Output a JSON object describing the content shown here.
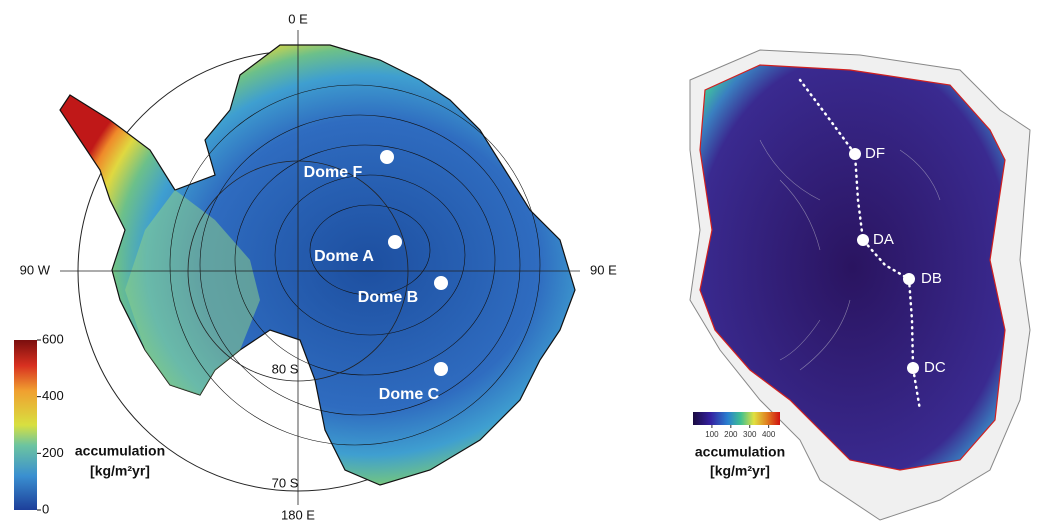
{
  "left_map": {
    "meridian_labels": {
      "top": "0 E",
      "bottom": "180 E",
      "left": "90 W",
      "right": "90 E"
    },
    "latitude_labels": [
      "80 S",
      "70 S"
    ],
    "domes": [
      "Dome F",
      "Dome A",
      "Dome B",
      "Dome C"
    ],
    "colorbar": {
      "title": "accumulation",
      "unit": "[kg/m²yr]",
      "range": [
        0,
        600
      ],
      "ticks": [
        0,
        200,
        400,
        600
      ]
    }
  },
  "right_map": {
    "sites": [
      "DF",
      "DA",
      "DB",
      "DC"
    ],
    "colorbar": {
      "title": "accumulation",
      "unit": "[kg/m²yr]",
      "range": [
        0,
        460
      ],
      "ticks": [
        100,
        200,
        300,
        400
      ]
    }
  }
}
